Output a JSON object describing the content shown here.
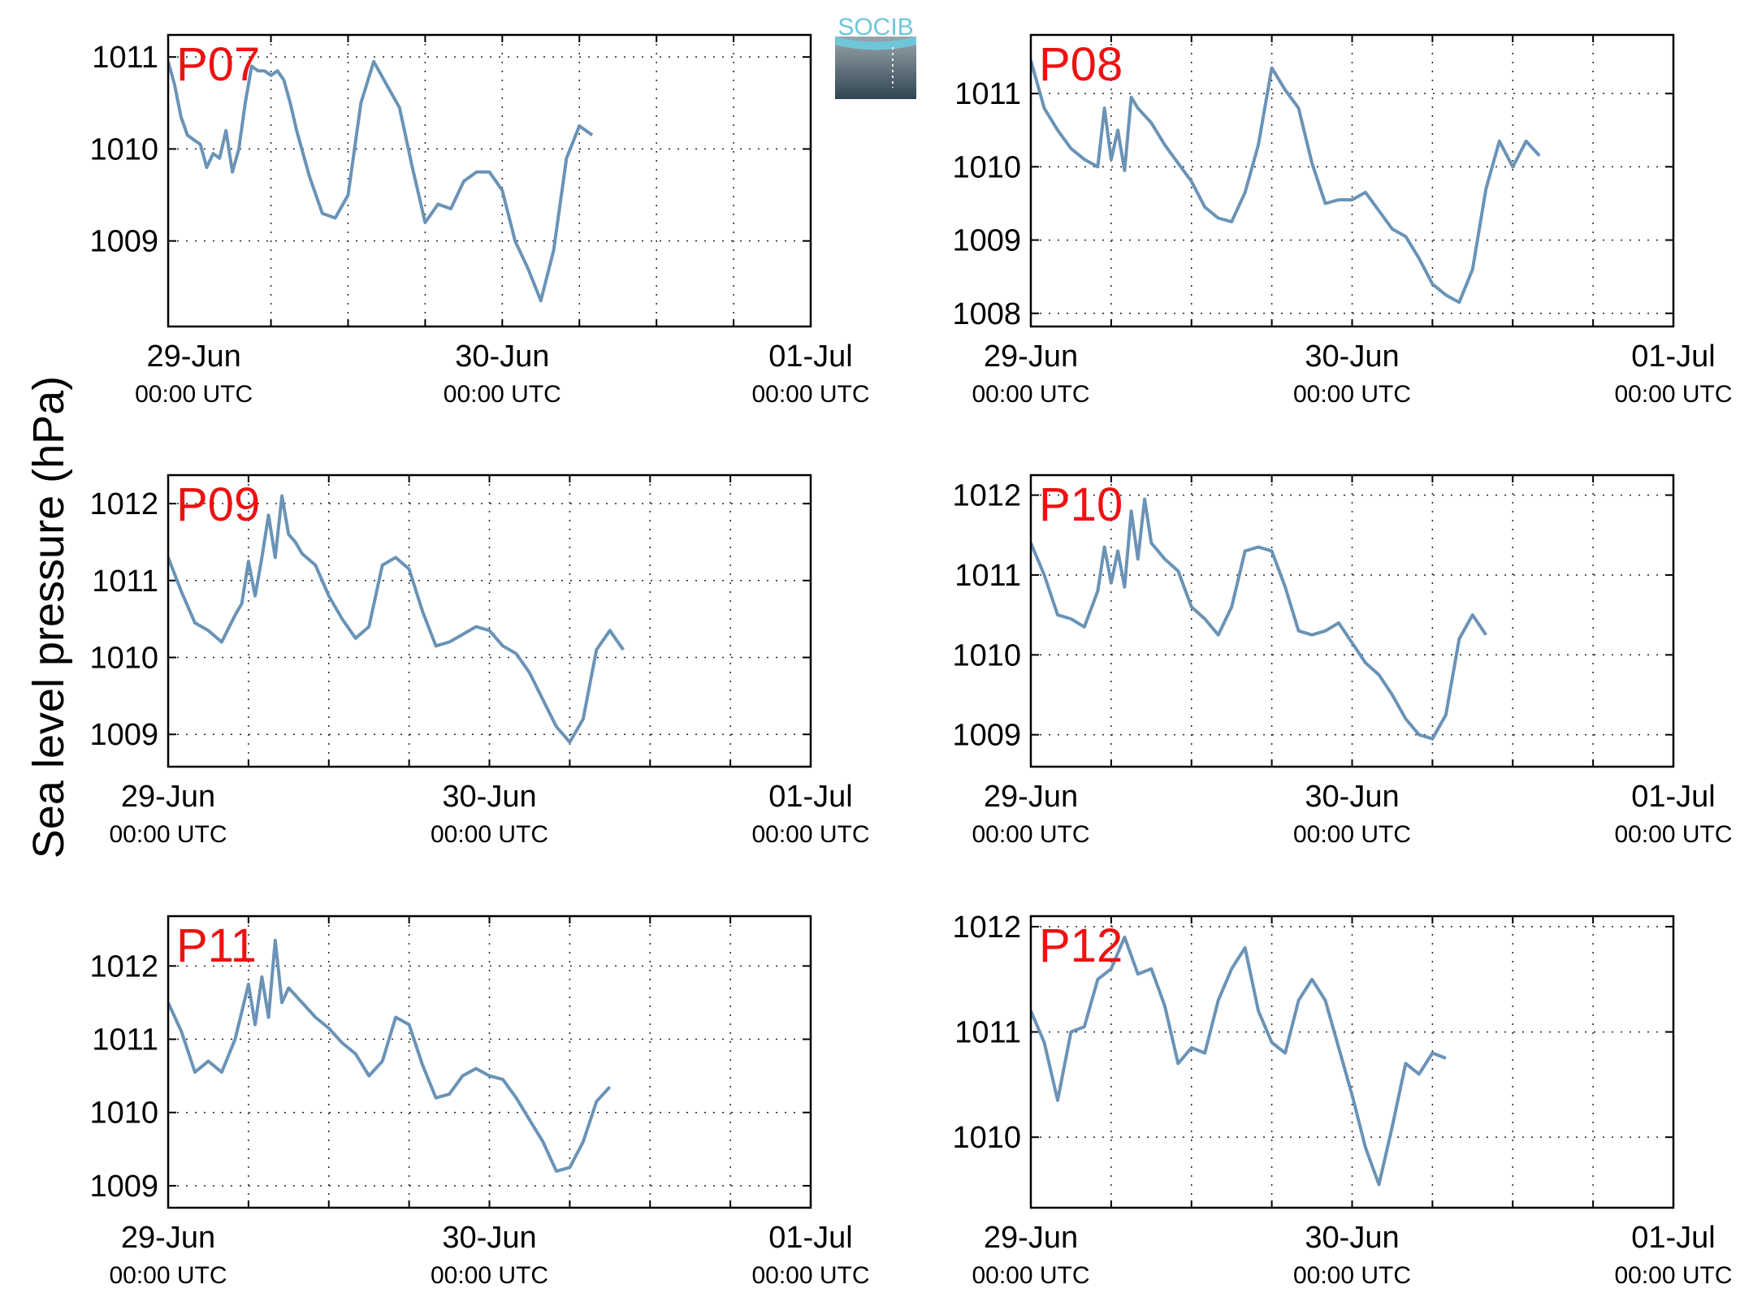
{
  "figure": {
    "ylabel": "Sea level pressure (hPa)",
    "logo_text": "SOCIB",
    "line_color": "#6a93b6",
    "label_color": "#ee1111"
  },
  "chart_data": [
    {
      "type": "line",
      "title": "P07",
      "x_unit": "hours since 29-Jun 00:00 UTC",
      "xlim": [
        -2,
        48
      ],
      "xticks": [
        {
          "x": 0,
          "date": "29-Jun",
          "time": "00:00 UTC"
        },
        {
          "x": 24,
          "date": "30-Jun",
          "time": "00:00 UTC"
        },
        {
          "x": 48,
          "date": "01-Jul",
          "time": "00:00 UTC"
        }
      ],
      "ylim": [
        1008.07,
        1011.24
      ],
      "yticks": [
        1009,
        1010,
        1011
      ],
      "grid": true,
      "x": [
        -2,
        -1.5,
        -1,
        -0.5,
        0,
        0.5,
        1,
        1.5,
        2,
        2.5,
        3,
        3.5,
        4,
        4.5,
        5,
        5.5,
        6,
        6.5,
        7,
        7.5,
        8,
        9,
        10,
        11,
        12,
        13,
        14,
        15,
        16,
        17,
        18,
        19,
        20,
        21,
        22,
        23,
        24,
        25,
        26,
        27,
        28,
        29,
        30,
        31,
        32,
        33,
        34,
        35,
        36,
        37,
        38,
        39,
        40,
        41,
        42,
        43,
        44,
        45,
        46,
        47,
        48
      ],
      "values": [
        1010.95,
        1010.7,
        1010.35,
        1010.15,
        1010.1,
        1010.05,
        1009.8,
        1009.95,
        1009.9,
        1010.2,
        1009.75,
        1010.0,
        1010.5,
        1010.9,
        1010.85,
        1010.85,
        1010.8,
        1010.85,
        1010.75,
        1010.5,
        1010.2,
        1009.7,
        1009.3,
        1009.25,
        1009.5,
        1010.5,
        1010.95,
        1010.7,
        1010.45,
        1009.8,
        1009.2,
        1009.4,
        1009.35,
        1009.65,
        1009.75,
        1009.75,
        1009.55,
        1009.0,
        1008.7,
        1008.35,
        1008.9,
        1009.9,
        1010.25,
        1010.15,
        null,
        null,
        null,
        null,
        null,
        null,
        null,
        null,
        null,
        null,
        null,
        null,
        null,
        null,
        null,
        null,
        null
      ]
    },
    {
      "type": "line",
      "title": "P08",
      "x_unit": "hours since 29-Jun 00:00 UTC",
      "xlim": [
        0,
        48
      ],
      "xticks": [
        {
          "x": 0,
          "date": "29-Jun",
          "time": "00:00 UTC"
        },
        {
          "x": 24,
          "date": "30-Jun",
          "time": "00:00 UTC"
        },
        {
          "x": 48,
          "date": "01-Jul",
          "time": "00:00 UTC"
        }
      ],
      "ylim": [
        1007.82,
        1011.8
      ],
      "yticks": [
        1008,
        1009,
        1010,
        1011
      ],
      "grid": true,
      "x": [
        0,
        1,
        2,
        3,
        4,
        5,
        5.5,
        6,
        6.5,
        7,
        7.5,
        8,
        9,
        10,
        11,
        12,
        13,
        14,
        15,
        16,
        17,
        18,
        19,
        20,
        21,
        22,
        23,
        24,
        25,
        26,
        27,
        28,
        29,
        30,
        31,
        32,
        33,
        34,
        35,
        36,
        37,
        38,
        39,
        40,
        41,
        42,
        43,
        44,
        45,
        46,
        47,
        48
      ],
      "values": [
        1011.45,
        1010.8,
        1010.5,
        1010.25,
        1010.1,
        1010.0,
        1010.8,
        1010.1,
        1010.5,
        1009.95,
        1010.95,
        1010.8,
        1010.6,
        1010.3,
        1010.05,
        1009.8,
        1009.45,
        1009.3,
        1009.25,
        1009.65,
        1010.3,
        1011.35,
        1011.05,
        1010.8,
        1010.05,
        1009.5,
        1009.55,
        1009.55,
        1009.65,
        1009.4,
        1009.15,
        1009.05,
        1008.75,
        1008.4,
        1008.25,
        1008.15,
        1008.6,
        1009.7,
        1010.35,
        1010.0,
        1010.35,
        1010.15,
        null,
        null,
        null,
        null,
        null,
        null,
        null,
        null,
        null,
        null
      ]
    },
    {
      "type": "line",
      "title": "P09",
      "x_unit": "hours since 29-Jun 00:00 UTC",
      "xlim": [
        0,
        48
      ],
      "xticks": [
        {
          "x": 0,
          "date": "29-Jun",
          "time": "00:00 UTC"
        },
        {
          "x": 24,
          "date": "30-Jun",
          "time": "00:00 UTC"
        },
        {
          "x": 48,
          "date": "01-Jul",
          "time": "00:00 UTC"
        }
      ],
      "ylim": [
        1008.58,
        1012.37
      ],
      "yticks": [
        1009,
        1010,
        1011,
        1012
      ],
      "grid": true,
      "x": [
        0,
        1,
        2,
        3,
        4,
        5,
        5.5,
        6,
        6.5,
        7,
        7.5,
        8,
        8.5,
        9,
        9.5,
        10,
        11,
        12,
        13,
        14,
        15,
        16,
        17,
        18,
        19,
        20,
        21,
        22,
        23,
        24,
        25,
        26,
        27,
        28,
        29,
        30,
        31,
        32,
        33,
        34,
        35,
        36,
        37,
        38,
        39,
        40,
        41,
        42,
        43,
        44,
        45,
        46,
        47,
        48
      ],
      "values": [
        1011.3,
        1010.85,
        1010.45,
        1010.35,
        1010.2,
        1010.55,
        1010.7,
        1011.25,
        1010.8,
        1011.3,
        1011.85,
        1011.3,
        1012.1,
        1011.6,
        1011.5,
        1011.35,
        1011.2,
        1010.8,
        1010.5,
        1010.25,
        1010.4,
        1011.2,
        1011.3,
        1011.15,
        1010.6,
        1010.15,
        1010.2,
        1010.3,
        1010.4,
        1010.35,
        1010.15,
        1010.05,
        1009.8,
        1009.45,
        1009.1,
        1008.9,
        1009.2,
        1010.1,
        1010.35,
        1010.1,
        null,
        null,
        null,
        null,
        null,
        null,
        null,
        null,
        null,
        null,
        null,
        null,
        null,
        null
      ]
    },
    {
      "type": "line",
      "title": "P10",
      "x_unit": "hours since 29-Jun 00:00 UTC",
      "xlim": [
        0,
        48
      ],
      "xticks": [
        {
          "x": 0,
          "date": "29-Jun",
          "time": "00:00 UTC"
        },
        {
          "x": 24,
          "date": "30-Jun",
          "time": "00:00 UTC"
        },
        {
          "x": 48,
          "date": "01-Jul",
          "time": "00:00 UTC"
        }
      ],
      "ylim": [
        1008.6,
        1012.25
      ],
      "yticks": [
        1009,
        1010,
        1011,
        1012
      ],
      "grid": true,
      "x": [
        0,
        1,
        2,
        3,
        4,
        5,
        5.5,
        6,
        6.5,
        7,
        7.5,
        8,
        8.5,
        9,
        9.5,
        10,
        11,
        12,
        13,
        14,
        15,
        16,
        17,
        18,
        19,
        20,
        21,
        22,
        23,
        24,
        25,
        26,
        27,
        28,
        29,
        30,
        31,
        32,
        33,
        34,
        35,
        36,
        37,
        38,
        39,
        40,
        41,
        42,
        43,
        44,
        45,
        46,
        47,
        48
      ],
      "values": [
        1011.4,
        1011.0,
        1010.5,
        1010.45,
        1010.35,
        1010.8,
        1011.35,
        1010.9,
        1011.3,
        1010.85,
        1011.8,
        1011.2,
        1011.95,
        1011.4,
        1011.3,
        1011.2,
        1011.05,
        1010.6,
        1010.45,
        1010.25,
        1010.6,
        1011.3,
        1011.35,
        1011.3,
        1010.85,
        1010.3,
        1010.25,
        1010.3,
        1010.4,
        1010.15,
        1009.9,
        1009.75,
        1009.5,
        1009.2,
        1009.0,
        1008.95,
        1009.25,
        1010.2,
        1010.5,
        1010.25,
        null,
        null,
        null,
        null,
        null,
        null,
        null,
        null,
        null,
        null,
        null,
        null,
        null,
        null
      ]
    },
    {
      "type": "line",
      "title": "P11",
      "x_unit": "hours since 29-Jun 00:00 UTC",
      "xlim": [
        0,
        48
      ],
      "xticks": [
        {
          "x": 0,
          "date": "29-Jun",
          "time": "00:00 UTC"
        },
        {
          "x": 24,
          "date": "30-Jun",
          "time": "00:00 UTC"
        },
        {
          "x": 48,
          "date": "01-Jul",
          "time": "00:00 UTC"
        }
      ],
      "ylim": [
        1008.7,
        1012.68
      ],
      "yticks": [
        1009,
        1010,
        1011,
        1012
      ],
      "grid": true,
      "x": [
        0,
        1,
        2,
        3,
        4,
        5,
        6,
        6.5,
        7,
        7.5,
        8,
        8.5,
        9,
        9.5,
        10,
        11,
        12,
        13,
        14,
        15,
        16,
        17,
        18,
        19,
        20,
        21,
        22,
        23,
        24,
        25,
        26,
        27,
        28,
        29,
        30,
        31,
        32,
        33,
        34,
        35,
        36,
        37,
        38,
        39,
        40,
        41,
        42,
        43,
        44,
        45,
        46,
        47,
        48
      ],
      "values": [
        1011.5,
        1011.1,
        1010.55,
        1010.7,
        1010.55,
        1011.0,
        1011.75,
        1011.2,
        1011.85,
        1011.3,
        1012.35,
        1011.5,
        1011.7,
        1011.6,
        1011.5,
        1011.3,
        1011.15,
        1010.95,
        1010.8,
        1010.5,
        1010.7,
        1011.3,
        1011.2,
        1010.65,
        1010.2,
        1010.25,
        1010.5,
        1010.6,
        1010.5,
        1010.45,
        1010.2,
        1009.9,
        1009.6,
        1009.2,
        1009.25,
        1009.6,
        1010.15,
        1010.35,
        null,
        null,
        null,
        null,
        null,
        null,
        null,
        null,
        null,
        null,
        null,
        null,
        null,
        null,
        null
      ]
    },
    {
      "type": "line",
      "title": "P12",
      "x_unit": "hours since 29-Jun 00:00 UTC",
      "xlim": [
        0,
        48
      ],
      "xticks": [
        {
          "x": 0,
          "date": "29-Jun",
          "time": "00:00 UTC"
        },
        {
          "x": 24,
          "date": "30-Jun",
          "time": "00:00 UTC"
        },
        {
          "x": 48,
          "date": "01-Jul",
          "time": "00:00 UTC"
        }
      ],
      "ylim": [
        1009.33,
        1012.1
      ],
      "yticks": [
        1010,
        1011,
        1012
      ],
      "grid": true,
      "x": [
        0,
        1,
        2,
        3,
        4,
        5,
        6,
        7,
        8,
        9,
        10,
        11,
        12,
        13,
        14,
        15,
        16,
        17,
        18,
        19,
        20,
        21,
        22,
        23,
        24,
        25,
        26,
        27,
        28,
        29,
        30,
        31,
        32,
        33,
        34,
        35,
        36,
        37,
        38,
        39,
        40,
        41,
        42,
        43,
        44,
        45,
        46,
        47,
        48
      ],
      "values": [
        1011.2,
        1010.9,
        1010.35,
        1011.0,
        1011.05,
        1011.5,
        1011.6,
        1011.9,
        1011.55,
        1011.6,
        1011.25,
        1010.7,
        1010.85,
        1010.8,
        1011.3,
        1011.6,
        1011.8,
        1011.2,
        1010.9,
        1010.8,
        1011.3,
        1011.5,
        1011.3,
        1010.85,
        1010.4,
        1009.9,
        1009.55,
        1010.1,
        1010.7,
        1010.6,
        1010.8,
        1010.75,
        null,
        null,
        null,
        null,
        null,
        null,
        null,
        null,
        null,
        null,
        null,
        null,
        null,
        null,
        null,
        null,
        null
      ]
    }
  ]
}
